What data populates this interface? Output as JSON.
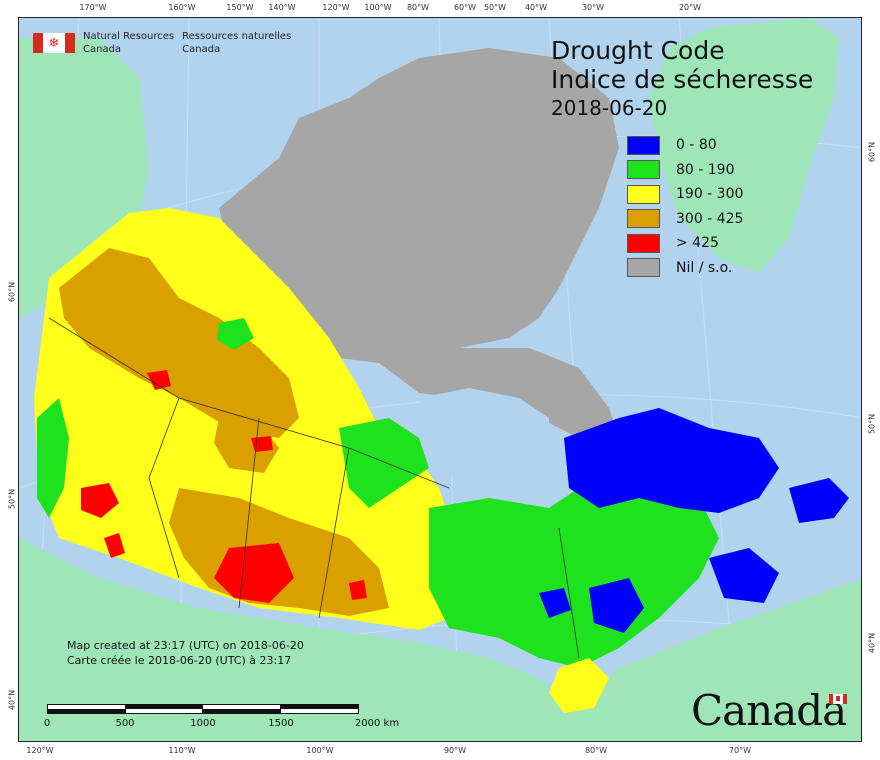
{
  "agency": {
    "name_en_line1": "Natural Resources",
    "name_en_line2": "Canada",
    "name_fr_line1": "Ressources naturelles",
    "name_fr_line2": "Canada"
  },
  "title": {
    "en": "Drought Code",
    "fr": "Indice de sécheresse",
    "date": "2018-06-20"
  },
  "legend": [
    {
      "label": "0 - 80",
      "color": "#0000ff"
    },
    {
      "label": "80 - 190",
      "color": "#1ee21e"
    },
    {
      "label": "190 - 300",
      "color": "#ffff1a"
    },
    {
      "label": "300 - 425",
      "color": "#d9a000"
    },
    {
      "label": "> 425",
      "color": "#ff0000"
    },
    {
      "label": "Nil / s.o.",
      "color": "#a6a6a6"
    }
  ],
  "footnote": {
    "line1": "Map created at 23:17 (UTC) on 2018-06-20",
    "line2": "Carte créée le 2018-06-20 (UTC) à 23:17"
  },
  "scalebar": {
    "labels": [
      "0",
      "500",
      "1000",
      "1500",
      "2000 km"
    ]
  },
  "graticule": {
    "top": [
      "170°W",
      "160°W",
      "150°W",
      "140°W",
      "120°W",
      "100°W",
      "80°W",
      "60°W",
      "50°W",
      "40°W",
      "30°W",
      "20°W"
    ],
    "bottom": [
      "120°W",
      "110°W",
      "100°W",
      "90°W",
      "80°W",
      "70°W"
    ],
    "left": [
      "60°N",
      "50°N",
      "40°N"
    ],
    "right": [
      "60°N",
      "50°N",
      "40°N"
    ]
  },
  "wordmark": "Canada",
  "colors": {
    "ocean": "#b2d3ee",
    "foreign_land": "#9ee6b8",
    "no_data": "#a6a6a6"
  }
}
